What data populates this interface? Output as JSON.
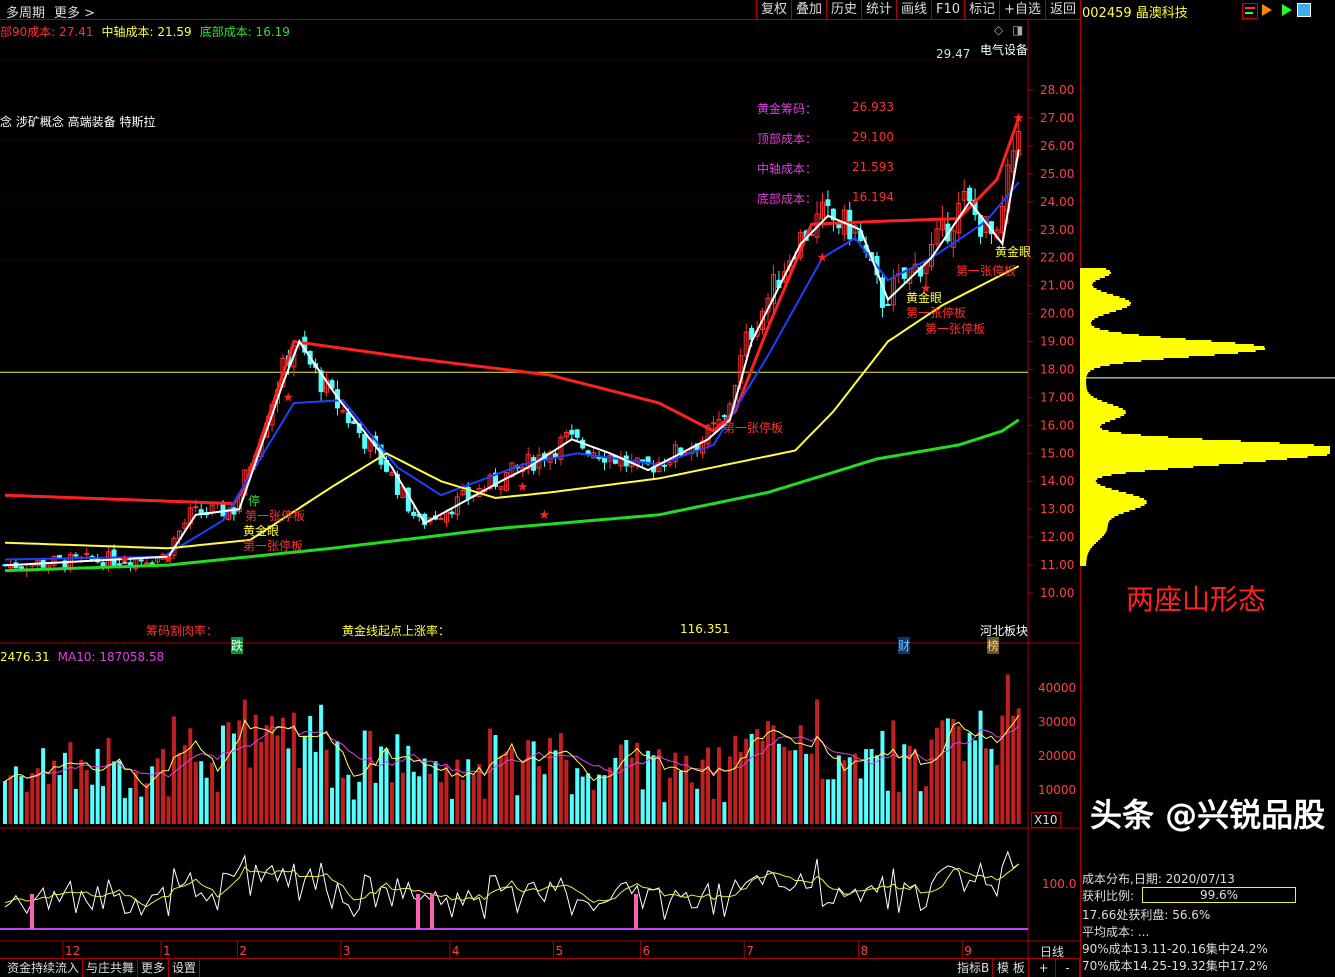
{
  "toolbar": {
    "multi_period": "多周期",
    "more": "更多 >",
    "buttons": [
      "复权",
      "叠加",
      "历史",
      "统计",
      "画线",
      "F10",
      "标记",
      "+自选",
      "返回"
    ]
  },
  "stock": {
    "code_name": "002459 晶澳科技"
  },
  "header": {
    "top_cost": "部90成本: 27.41",
    "mid_cost": "中轴成本: 21.59",
    "bottom_cost": "底部成本: 16.19",
    "concepts": "念 涉矿概念 高端装备 特斯拉",
    "sector": "电气设备",
    "high_price": "29.47"
  },
  "info_panel": [
    {
      "label": "黄金筹码：",
      "value": "26.933"
    },
    {
      "label": "顶部成本：",
      "value": "29.100"
    },
    {
      "label": "中轴成本：",
      "value": "21.593"
    },
    {
      "label": "底部成本：",
      "value": "16.194"
    }
  ],
  "annotations": {
    "chip_cut_rate": "筹码割肉率：",
    "gold_rise": "黄金线起点上涨率：",
    "gold_rise_value": "116.351",
    "region": "河北板块",
    "badge_die": "跌",
    "badge_cai": "财",
    "badge_bang": "榜",
    "golden_eye": "黄金眼",
    "first_limit": "第一张停板",
    "title_two_mountains": "两座山形态",
    "stop": "停"
  },
  "volume": {
    "header": "2476.31",
    "ma10": "MA10: 187058.58",
    "unit": "X10",
    "ticks": [
      "40000",
      "30000",
      "20000",
      "10000"
    ]
  },
  "indicator": {
    "tick": "100.0"
  },
  "price_axis": [
    "28.00",
    "27.00",
    "26.00",
    "25.00",
    "24.00",
    "23.00",
    "22.00",
    "21.00",
    "20.00",
    "19.00",
    "18.00",
    "17.00",
    "16.00",
    "15.00",
    "14.00",
    "13.00",
    "12.00",
    "11.00",
    "10.00"
  ],
  "months": [
    {
      "label": "12",
      "day": 11
    },
    {
      "label": "1",
      "day": 29
    },
    {
      "label": "2",
      "day": 43
    },
    {
      "label": "3",
      "day": 62
    },
    {
      "label": "4",
      "day": 82
    },
    {
      "label": "5",
      "day": 101
    },
    {
      "label": "6",
      "day": 117
    },
    {
      "label": "7",
      "day": 136
    },
    {
      "label": "8",
      "day": 157
    },
    {
      "label": "9",
      "day": 176
    }
  ],
  "chip": {
    "date_label": "成本分布,日期: 2020/07/13",
    "profit_label": "获利比例:",
    "profit_value": "99.6%",
    "profit_fraction": 0.996,
    "line3": "17.66处获利盘: 56.6%",
    "line4": "平均成本: ...",
    "line5": "90%成本13.11-20.16集中24.2%",
    "line6": "70%成本14.25-19.32集中17.2%",
    "current_price": 17.7
  },
  "bottom_tabs": [
    "资金持续流入",
    "与庄共舞",
    "更多",
    "设置"
  ],
  "bottom_right": {
    "indicator": "指标B",
    "template": "模 板",
    "plus": "+",
    "minus": "-",
    "period": "日线"
  },
  "watermark": "头条 @兴锐品股",
  "colors": {
    "up": "#ff3030",
    "down": "#54ffff",
    "ma_top": "#ff2020",
    "ma_blue": "#2040ff",
    "ma_yellow": "#ffff40",
    "ma_green": "#20dd20",
    "chip": "#ffff00"
  },
  "chart_data": {
    "type": "candlestick",
    "ylim": [
      9.5,
      29
    ],
    "close_keypoints": [
      [
        0,
        11.0
      ],
      [
        29,
        11.3
      ],
      [
        34,
        12.8
      ],
      [
        42,
        13.0
      ],
      [
        50,
        17.5
      ],
      [
        53,
        19.0
      ],
      [
        60,
        17.0
      ],
      [
        70,
        14.5
      ],
      [
        76,
        12.5
      ],
      [
        90,
        14.0
      ],
      [
        95,
        14.5
      ],
      [
        103,
        15.5
      ],
      [
        110,
        15.0
      ],
      [
        117,
        14.4
      ],
      [
        128,
        15.5
      ],
      [
        132,
        16.2
      ],
      [
        136,
        19.0
      ],
      [
        145,
        22.5
      ],
      [
        150,
        23.5
      ],
      [
        156,
        23.0
      ],
      [
        161,
        20.5
      ],
      [
        169,
        22.0
      ],
      [
        176,
        24.0
      ],
      [
        182,
        22.5
      ],
      [
        186,
        27.0
      ]
    ],
    "ma_top": [
      [
        0,
        13.5
      ],
      [
        42,
        13.2
      ],
      [
        44,
        13.8
      ],
      [
        53,
        19.0
      ],
      [
        75,
        18.4
      ],
      [
        100,
        17.8
      ],
      [
        120,
        16.8
      ],
      [
        130,
        15.8
      ],
      [
        134,
        16.5
      ],
      [
        140,
        19.5
      ],
      [
        148,
        23.2
      ],
      [
        160,
        23.3
      ],
      [
        175,
        23.4
      ],
      [
        182,
        24.8
      ],
      [
        186,
        27.0
      ]
    ],
    "ma_blue": [
      [
        0,
        11.2
      ],
      [
        29,
        11.3
      ],
      [
        40,
        12.6
      ],
      [
        53,
        16.8
      ],
      [
        62,
        16.9
      ],
      [
        72,
        14.5
      ],
      [
        80,
        13.5
      ],
      [
        95,
        14.6
      ],
      [
        105,
        15.0
      ],
      [
        120,
        14.6
      ],
      [
        130,
        15.3
      ],
      [
        140,
        18.5
      ],
      [
        150,
        22.0
      ],
      [
        156,
        22.7
      ],
      [
        162,
        21.2
      ],
      [
        170,
        22.0
      ],
      [
        180,
        23.3
      ],
      [
        186,
        24.7
      ]
    ],
    "ma_yellow": [
      [
        0,
        11.8
      ],
      [
        30,
        11.6
      ],
      [
        45,
        11.9
      ],
      [
        60,
        13.8
      ],
      [
        70,
        15.0
      ],
      [
        80,
        14.0
      ],
      [
        90,
        13.4
      ],
      [
        100,
        13.6
      ],
      [
        120,
        14.1
      ],
      [
        145,
        15.1
      ],
      [
        152,
        16.5
      ],
      [
        162,
        19.0
      ],
      [
        172,
        20.3
      ],
      [
        186,
        21.7
      ]
    ],
    "ma_green": [
      [
        0,
        10.8
      ],
      [
        30,
        11.0
      ],
      [
        60,
        11.6
      ],
      [
        90,
        12.3
      ],
      [
        120,
        12.8
      ],
      [
        140,
        13.6
      ],
      [
        160,
        14.8
      ],
      [
        175,
        15.3
      ],
      [
        183,
        15.8
      ],
      [
        186,
        16.2
      ]
    ]
  }
}
